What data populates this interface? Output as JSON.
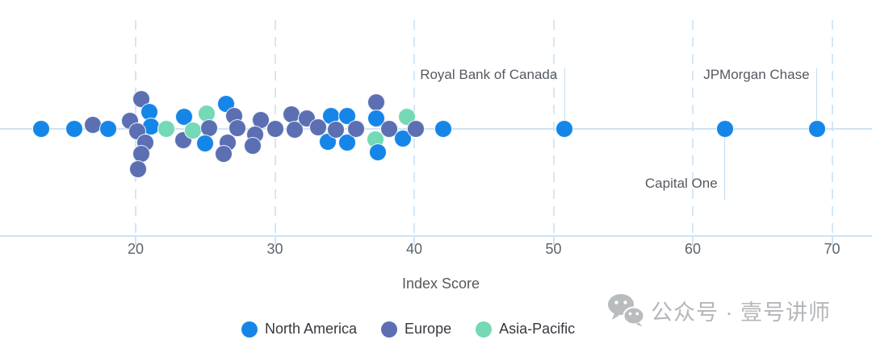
{
  "chart_data": {
    "type": "scatter",
    "variant": "strip-plot-beeswarm",
    "xlabel": "Index Score",
    "x_ticks": [
      20,
      30,
      40,
      50,
      60,
      70
    ],
    "x_axis_visible_range": [
      10.3,
      72.9
    ],
    "grid": "dashed-vertical",
    "legend_position": "bottom-center",
    "regions": [
      {
        "id": "na",
        "label": "North America",
        "color": "#1586e8"
      },
      {
        "id": "eu",
        "label": "Europe",
        "color": "#5b6fb2"
      },
      {
        "id": "ap",
        "label": "Asia-Pacific",
        "color": "#74d9b4"
      }
    ],
    "points": [
      {
        "v": 13.2,
        "dy": 0,
        "region": "na"
      },
      {
        "v": 15.6,
        "dy": 0,
        "region": "na"
      },
      {
        "v": 16.9,
        "dy": -5,
        "region": "eu"
      },
      {
        "v": 18.0,
        "dy": 0,
        "region": "na"
      },
      {
        "v": 20.4,
        "dy": -37,
        "region": "eu"
      },
      {
        "v": 21.0,
        "dy": -21,
        "region": "na"
      },
      {
        "v": 19.6,
        "dy": -10,
        "region": "eu"
      },
      {
        "v": 21.1,
        "dy": -3,
        "region": "na"
      },
      {
        "v": 20.1,
        "dy": 3,
        "region": "eu"
      },
      {
        "v": 20.7,
        "dy": 17,
        "region": "eu"
      },
      {
        "v": 20.4,
        "dy": 31,
        "region": "eu"
      },
      {
        "v": 20.2,
        "dy": 50,
        "region": "eu"
      },
      {
        "v": 22.2,
        "dy": 0,
        "region": "ap"
      },
      {
        "v": 23.5,
        "dy": -15,
        "region": "na"
      },
      {
        "v": 23.4,
        "dy": 14,
        "region": "eu"
      },
      {
        "v": 24.1,
        "dy": 2,
        "region": "ap"
      },
      {
        "v": 25.1,
        "dy": -19,
        "region": "ap"
      },
      {
        "v": 25.3,
        "dy": -1,
        "region": "eu"
      },
      {
        "v": 25.0,
        "dy": 18,
        "region": "na"
      },
      {
        "v": 26.5,
        "dy": -31,
        "region": "na"
      },
      {
        "v": 27.1,
        "dy": -16,
        "region": "eu"
      },
      {
        "v": 27.3,
        "dy": -1,
        "region": "eu"
      },
      {
        "v": 26.6,
        "dy": 17,
        "region": "eu"
      },
      {
        "v": 26.3,
        "dy": 31,
        "region": "eu"
      },
      {
        "v": 29.0,
        "dy": -11,
        "region": "eu"
      },
      {
        "v": 28.6,
        "dy": 7,
        "region": "eu"
      },
      {
        "v": 28.4,
        "dy": 21,
        "region": "eu"
      },
      {
        "v": 30.0,
        "dy": 0,
        "region": "eu"
      },
      {
        "v": 31.2,
        "dy": -18,
        "region": "eu"
      },
      {
        "v": 31.4,
        "dy": 1,
        "region": "eu"
      },
      {
        "v": 32.3,
        "dy": -13,
        "region": "eu"
      },
      {
        "v": 33.1,
        "dy": -2,
        "region": "eu"
      },
      {
        "v": 33.8,
        "dy": 16,
        "region": "na"
      },
      {
        "v": 34.0,
        "dy": -16,
        "region": "na"
      },
      {
        "v": 34.4,
        "dy": 1,
        "region": "eu"
      },
      {
        "v": 35.2,
        "dy": -16,
        "region": "na"
      },
      {
        "v": 35.2,
        "dy": 17,
        "region": "na"
      },
      {
        "v": 35.8,
        "dy": 0,
        "region": "eu"
      },
      {
        "v": 37.3,
        "dy": -33,
        "region": "eu"
      },
      {
        "v": 37.3,
        "dy": -13,
        "region": "na"
      },
      {
        "v": 38.2,
        "dy": 0,
        "region": "eu"
      },
      {
        "v": 37.2,
        "dy": 13,
        "region": "ap"
      },
      {
        "v": 37.4,
        "dy": 29,
        "region": "na"
      },
      {
        "v": 39.5,
        "dy": -15,
        "region": "ap"
      },
      {
        "v": 39.2,
        "dy": 12,
        "region": "na"
      },
      {
        "v": 40.1,
        "dy": 0,
        "region": "eu"
      },
      {
        "v": 42.1,
        "dy": 0,
        "region": "na"
      },
      {
        "v": 50.8,
        "dy": 0,
        "region": "na",
        "annotated": true
      },
      {
        "v": 62.3,
        "dy": 0,
        "region": "na",
        "annotated": true
      },
      {
        "v": 68.9,
        "dy": 0,
        "region": "na",
        "annotated": true
      }
    ],
    "annotations": [
      {
        "text": "Royal Bank of Canada",
        "v": 50.8,
        "side": "above"
      },
      {
        "text": "JPMorgan Chase",
        "v": 68.9,
        "side": "above"
      },
      {
        "text": "Capital One",
        "v": 62.3,
        "side": "below"
      }
    ]
  },
  "colors": {
    "axis_line": "#cfe3f4",
    "gridline": "#d3e7f7",
    "leader_line": "#c3dcf0",
    "tick_label": "#5f6368",
    "annotation_text": "#55595f",
    "axis_title": "#55585d",
    "legend_text": "#36393e",
    "watermark": "#b4b7ba"
  },
  "watermark": {
    "icon": "wechat-icon",
    "text": "公众号 · 壹号讲师"
  }
}
